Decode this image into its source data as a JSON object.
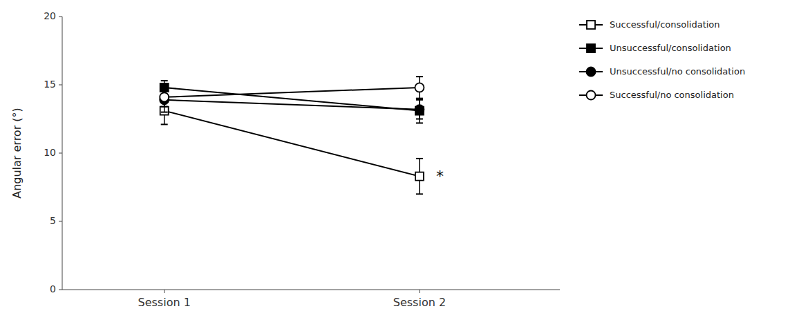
{
  "chart_data": {
    "type": "line",
    "categories": [
      "Session 1",
      "Session 2"
    ],
    "series": [
      {
        "name": "Successful/consolidation",
        "color": "#000000",
        "marker": "square-open",
        "values": [
          13.1,
          8.3
        ],
        "errors": [
          1.0,
          1.3
        ]
      },
      {
        "name": "Unsuccessful/consolidation",
        "color": "#000000",
        "marker": "square",
        "values": [
          14.8,
          13.1
        ],
        "errors": [
          0.5,
          0.9
        ]
      },
      {
        "name": "Unsuccessful/no consolidation",
        "color": "#000000",
        "marker": "circle",
        "values": [
          13.9,
          13.2
        ],
        "errors": [
          0.9,
          0.7
        ]
      },
      {
        "name": "Successful/no consolidation",
        "color": "#000000",
        "marker": "circle-open",
        "values": [
          14.1,
          14.8
        ],
        "errors": [
          0.7,
          0.8
        ]
      }
    ],
    "y_label": "Angular error (°)",
    "ylim": [
      0,
      20
    ],
    "yticks": [
      0,
      5,
      10,
      15,
      20
    ],
    "annotations": [
      {
        "text": "*",
        "x": "Session 2",
        "y": 8.3
      }
    ],
    "grid": false,
    "legend": "right"
  }
}
